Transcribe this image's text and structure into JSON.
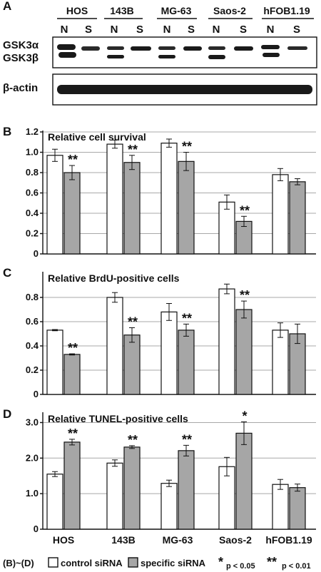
{
  "panels": {
    "a": "A",
    "b": "B",
    "c": "C",
    "d": "D"
  },
  "blot": {
    "cell_lines": [
      "HOS",
      "143B",
      "MG-63",
      "Saos-2",
      "hFOB1.19"
    ],
    "lanes": [
      "N",
      "S"
    ],
    "row1_labels": [
      "GSK3α",
      "GSK3β"
    ],
    "row2_label": "β-actin"
  },
  "categories": [
    "HOS",
    "143B",
    "MG-63",
    "Saos-2",
    "hFOB1.19"
  ],
  "legend": {
    "range_label": "(B)~(D)",
    "control": "control siRNA",
    "specific": "specific siRNA",
    "single_star": "*",
    "double_star": "**",
    "p_single": "p < 0.05",
    "p_double": "p < 0.01"
  },
  "colors": {
    "control": "#ffffff",
    "specific": "#a6a6a6",
    "outline": "#111111",
    "gridline": "#a8a8a8"
  },
  "chart_data": [
    {
      "type": "bar",
      "title": "Relative cell survival",
      "categories": [
        "HOS",
        "143B",
        "MG-63",
        "Saos-2",
        "hFOB1.19"
      ],
      "series": [
        {
          "name": "control siRNA",
          "values": [
            0.97,
            1.08,
            1.09,
            0.51,
            0.78
          ],
          "errors": [
            0.06,
            0.04,
            0.04,
            0.07,
            0.06
          ]
        },
        {
          "name": "specific siRNA",
          "values": [
            0.8,
            0.9,
            0.91,
            0.32,
            0.71
          ],
          "errors": [
            0.07,
            0.07,
            0.09,
            0.05,
            0.03
          ]
        }
      ],
      "significance": [
        "**",
        "**",
        "**",
        "**",
        ""
      ],
      "ylim": [
        0,
        1.2
      ],
      "yticks": [
        "0",
        "0.2",
        "0.4",
        "0.6",
        "0.8",
        "1.0",
        "1.2"
      ],
      "grid": true
    },
    {
      "type": "bar",
      "title": "Relative BrdU-positive cells",
      "categories": [
        "HOS",
        "143B",
        "MG-63",
        "Saos-2",
        "hFOB1.19"
      ],
      "series": [
        {
          "name": "control siRNA",
          "values": [
            0.53,
            0.8,
            0.68,
            0.87,
            0.53
          ],
          "errors": [
            0.005,
            0.04,
            0.07,
            0.04,
            0.06
          ]
        },
        {
          "name": "specific siRNA",
          "values": [
            0.33,
            0.49,
            0.53,
            0.7,
            0.5
          ],
          "errors": [
            0.005,
            0.06,
            0.05,
            0.07,
            0.08
          ]
        }
      ],
      "significance": [
        "**",
        "**",
        "**",
        "**",
        ""
      ],
      "ylim": [
        0,
        1.0
      ],
      "yticks": [
        "0",
        "0.2",
        "0.4",
        "0.6",
        "0.8"
      ],
      "grid": true
    },
    {
      "type": "bar",
      "title": "Relative TUNEL-positive cells",
      "categories": [
        "HOS",
        "143B",
        "MG-63",
        "Saos-2",
        "hFOB1.19"
      ],
      "series": [
        {
          "name": "control siRNA",
          "values": [
            1.55,
            1.86,
            1.29,
            1.76,
            1.26
          ],
          "errors": [
            0.07,
            0.09,
            0.09,
            0.26,
            0.14
          ]
        },
        {
          "name": "specific siRNA",
          "values": [
            2.45,
            2.31,
            2.21,
            2.7,
            1.17
          ],
          "errors": [
            0.08,
            0.04,
            0.15,
            0.32,
            0.1
          ]
        }
      ],
      "significance": [
        "**",
        "**",
        "**",
        "*",
        ""
      ],
      "ylim": [
        0,
        3.25
      ],
      "yticks": [
        "0",
        "1.0",
        "2.0",
        "3.0"
      ],
      "grid": true
    }
  ]
}
